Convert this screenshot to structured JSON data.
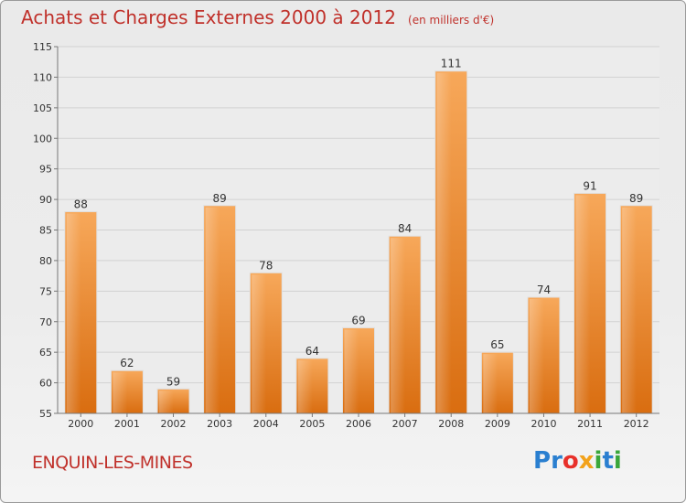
{
  "header": {
    "title": "Achats et Charges Externes 2000 à 2012",
    "unit": "(en milliers d'€)"
  },
  "footer": {
    "commune": "ENQUIN-LES-MINES",
    "logo_letters": [
      {
        "char": "P",
        "color": "#2a7fd0"
      },
      {
        "char": "r",
        "color": "#2a7fd0"
      },
      {
        "char": "o",
        "color": "#e8302a"
      },
      {
        "char": "x",
        "color": "#f2a21b"
      },
      {
        "char": "i",
        "color": "#3aa63a"
      },
      {
        "char": "t",
        "color": "#2a7fd0"
      },
      {
        "char": "i",
        "color": "#3aa63a"
      }
    ]
  },
  "chart_data": {
    "type": "bar",
    "title": "Achats et Charges Externes 2000 à 2012",
    "subtitle": "(en milliers d'€)",
    "xlabel": "",
    "ylabel": "",
    "categories": [
      "2000",
      "2001",
      "2002",
      "2003",
      "2004",
      "2005",
      "2006",
      "2007",
      "2008",
      "2009",
      "2010",
      "2011",
      "2012"
    ],
    "values": [
      88,
      62,
      59,
      89,
      78,
      64,
      69,
      84,
      111,
      65,
      74,
      91,
      89
    ],
    "ylim": [
      55,
      115
    ],
    "yticks": [
      55,
      60,
      65,
      70,
      75,
      80,
      85,
      90,
      95,
      100,
      105,
      110,
      115
    ],
    "grid": true,
    "bar_color": "#f0912e",
    "legend": "none"
  }
}
